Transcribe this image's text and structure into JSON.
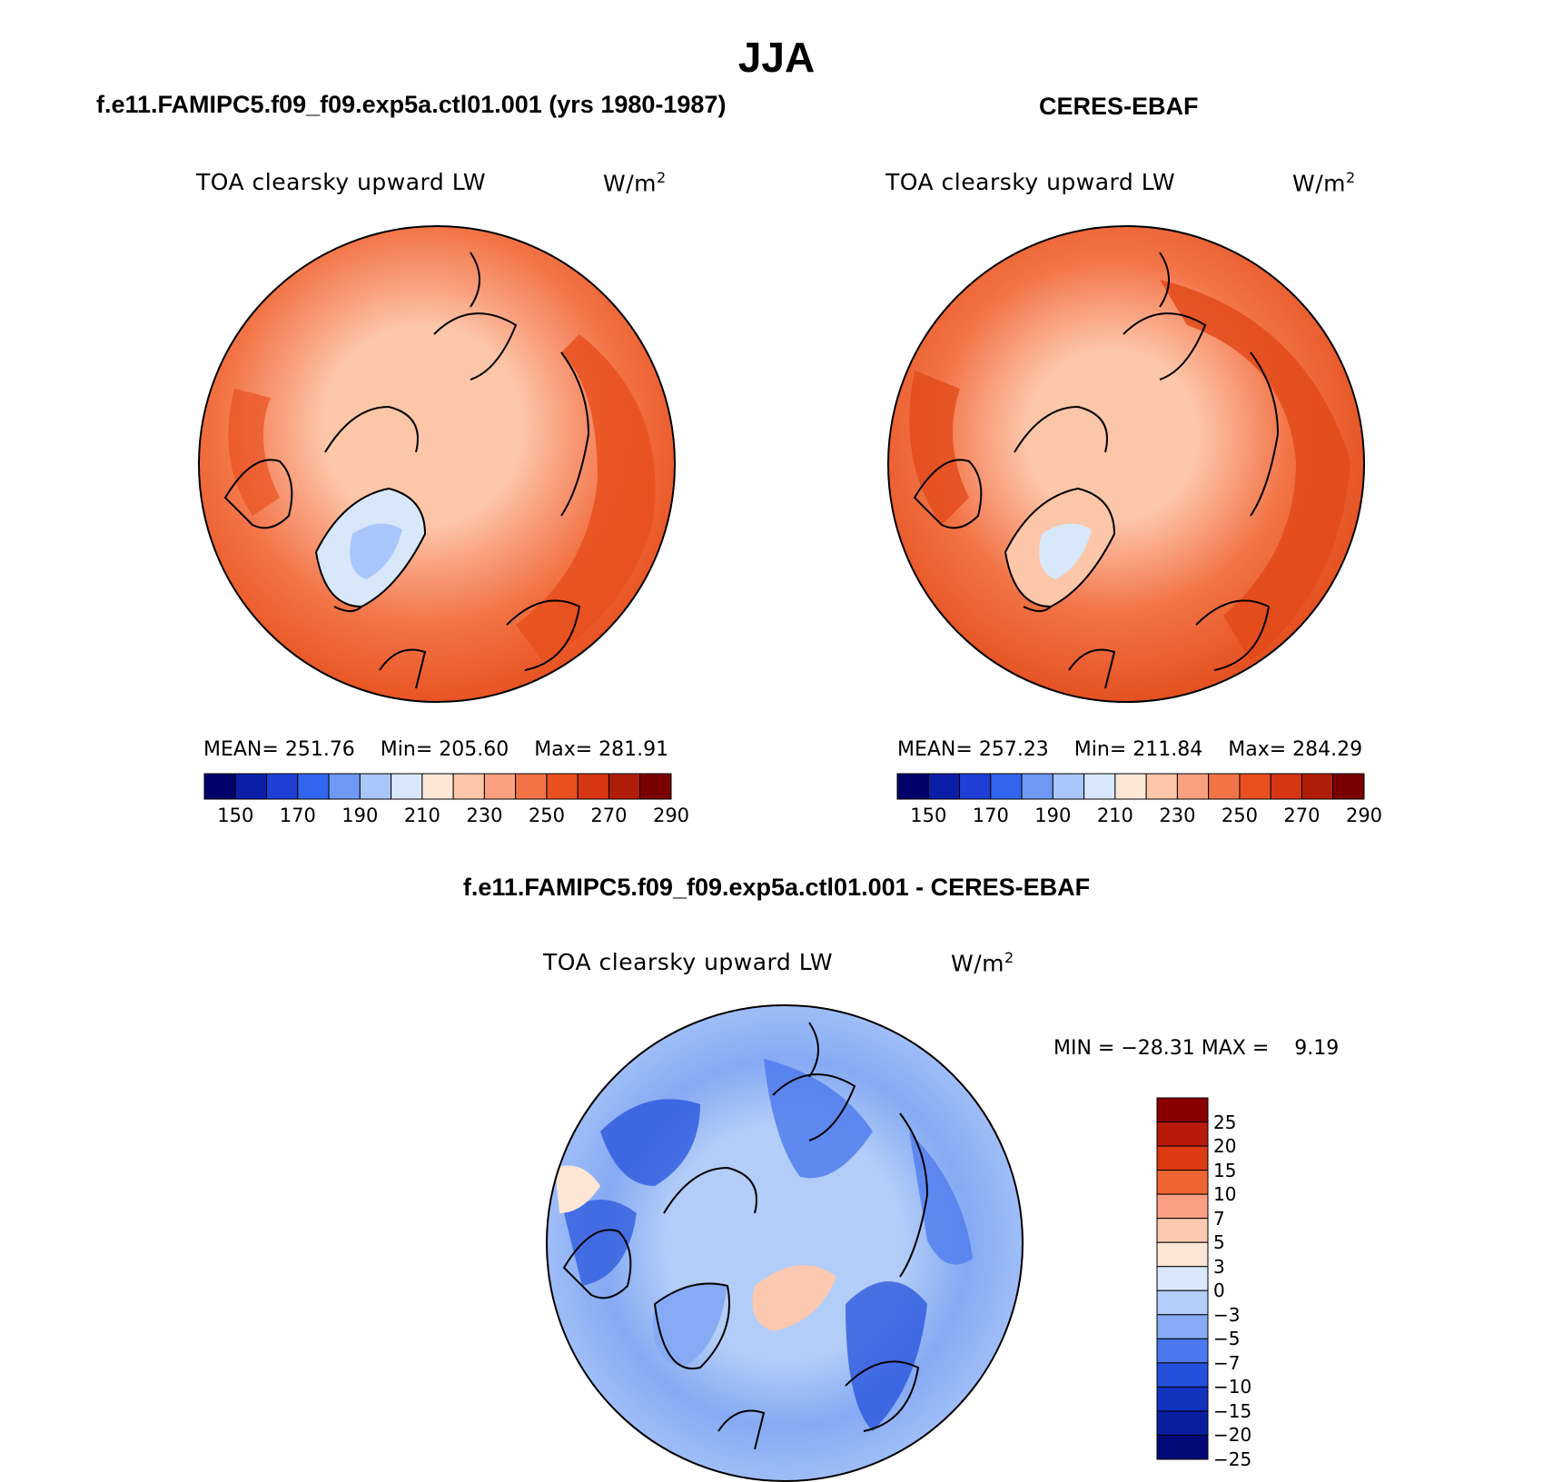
{
  "figure": {
    "title": "JJA"
  },
  "panels": [
    {
      "id": "model",
      "case_title": "f.e11.FAMIPC5.f09_f09.exp5a.ctl01.001 (yrs 1980-1987)",
      "variable": "TOA clearsky upward LW",
      "units_base": "W/m",
      "units_exp": "2",
      "stats": {
        "mean_label": "MEAN=",
        "mean": "251.76",
        "min_label": "Min=",
        "min": "205.60",
        "max_label": "Max=",
        "max": "281.91"
      }
    },
    {
      "id": "obs",
      "case_title": "CERES-EBAF",
      "variable": "TOA clearsky upward LW",
      "units_base": "W/m",
      "units_exp": "2",
      "stats": {
        "mean_label": "MEAN=",
        "mean": "257.23",
        "min_label": "Min=",
        "min": "211.84",
        "max_label": "Max=",
        "max": "284.29"
      }
    },
    {
      "id": "diff",
      "case_title": "f.e11.FAMIPC5.f09_f09.exp5a.ctl01.001 - CERES-EBAF",
      "variable": "TOA clearsky upward LW",
      "units_base": "W/m",
      "units_exp": "2",
      "stats_text": "MIN = −28.31 MAX =    9.19"
    }
  ],
  "colorbar_abs": {
    "colors": [
      "#00006a",
      "#0a1ea8",
      "#1f3fd6",
      "#3366ee",
      "#6f98f5",
      "#a9c6fa",
      "#d8e8fa",
      "#fde8d8",
      "#fcc6a8",
      "#f9a07e",
      "#f27446",
      "#e8501f",
      "#d63612",
      "#b01e0a",
      "#7a0000"
    ],
    "tick_labels": [
      "150",
      "170",
      "190",
      "210",
      "230",
      "250",
      "270",
      "290"
    ]
  },
  "colorbar_diff": {
    "colors": [
      "#8a0000",
      "#b81a0a",
      "#dc3a12",
      "#ef6532",
      "#fba084",
      "#fcc9b0",
      "#fde6d6",
      "#d9e8fa",
      "#b2cdf8",
      "#86aaf3",
      "#4b78ec",
      "#2450dc",
      "#1232c0",
      "#0a1ea0",
      "#020a78"
    ],
    "tick_labels": [
      "25",
      "20",
      "15",
      "10",
      "7",
      "5",
      "3",
      "0",
      "−3",
      "−5",
      "−7",
      "−10",
      "−15",
      "−20",
      "−25"
    ]
  }
}
